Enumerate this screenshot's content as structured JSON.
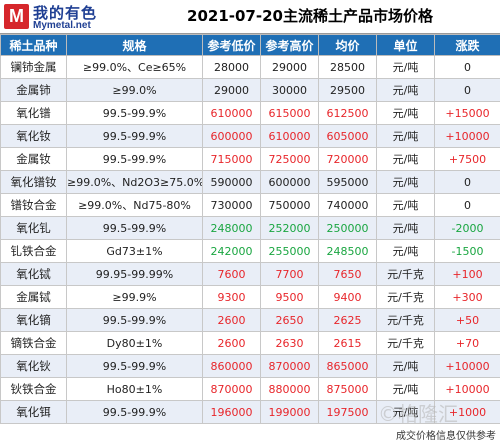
{
  "brand": {
    "logo_cn": "我的有色",
    "logo_en": "Mymetal.net",
    "mark": "M",
    "color": "#1f3f93",
    "mark_color": "#d6262b"
  },
  "title": "2021-07-20主流稀土产品市场价格",
  "columns": [
    "稀土品种",
    "规格",
    "参考低价",
    "参考高价",
    "均价",
    "单位",
    "涨跌"
  ],
  "rows": [
    {
      "name": "镧铈金属",
      "spec": "≥99.0%、Ce≥65%",
      "low": "28000",
      "high": "29000",
      "avg": "28500",
      "unit": "元/吨",
      "change": "0",
      "trend": "flat"
    },
    {
      "name": "金属铈",
      "spec": "≥99.0%",
      "low": "29000",
      "high": "30000",
      "avg": "29500",
      "unit": "元/吨",
      "change": "0",
      "trend": "flat"
    },
    {
      "name": "氧化镨",
      "spec": "99.5-99.9%",
      "low": "610000",
      "high": "615000",
      "avg": "612500",
      "unit": "元/吨",
      "change": "+15000",
      "trend": "up"
    },
    {
      "name": "氧化钕",
      "spec": "99.5-99.9%",
      "low": "600000",
      "high": "610000",
      "avg": "605000",
      "unit": "元/吨",
      "change": "+10000",
      "trend": "up"
    },
    {
      "name": "金属钕",
      "spec": "99.5-99.9%",
      "low": "715000",
      "high": "725000",
      "avg": "720000",
      "unit": "元/吨",
      "change": "+7500",
      "trend": "up"
    },
    {
      "name": "氧化镨钕",
      "spec": "≥99.0%、Nd2O3≥75.0%",
      "low": "590000",
      "high": "600000",
      "avg": "595000",
      "unit": "元/吨",
      "change": "0",
      "trend": "flat"
    },
    {
      "name": "镨钕合金",
      "spec": "≥99.0%、Nd75-80%",
      "low": "730000",
      "high": "750000",
      "avg": "740000",
      "unit": "元/吨",
      "change": "0",
      "trend": "flat"
    },
    {
      "name": "氧化钆",
      "spec": "99.5-99.9%",
      "low": "248000",
      "high": "252000",
      "avg": "250000",
      "unit": "元/吨",
      "change": "-2000",
      "trend": "down"
    },
    {
      "name": "钆铁合金",
      "spec": "Gd73±1%",
      "low": "242000",
      "high": "255000",
      "avg": "248500",
      "unit": "元/吨",
      "change": "-1500",
      "trend": "down"
    },
    {
      "name": "氧化铽",
      "spec": "99.95-99.99%",
      "low": "7600",
      "high": "7700",
      "avg": "7650",
      "unit": "元/千克",
      "change": "+100",
      "trend": "up"
    },
    {
      "name": "金属铽",
      "spec": "≥99.9%",
      "low": "9300",
      "high": "9500",
      "avg": "9400",
      "unit": "元/千克",
      "change": "+300",
      "trend": "up"
    },
    {
      "name": "氧化镝",
      "spec": "99.5-99.9%",
      "low": "2600",
      "high": "2650",
      "avg": "2625",
      "unit": "元/千克",
      "change": "+50",
      "trend": "up"
    },
    {
      "name": "镝铁合金",
      "spec": "Dy80±1%",
      "low": "2600",
      "high": "2630",
      "avg": "2615",
      "unit": "元/千克",
      "change": "+70",
      "trend": "up"
    },
    {
      "name": "氧化钬",
      "spec": "99.5-99.9%",
      "low": "860000",
      "high": "870000",
      "avg": "865000",
      "unit": "元/吨",
      "change": "+10000",
      "trend": "up"
    },
    {
      "name": "钬铁合金",
      "spec": "Ho80±1%",
      "low": "870000",
      "high": "880000",
      "avg": "875000",
      "unit": "元/吨",
      "change": "+10000",
      "trend": "up"
    },
    {
      "name": "氧化铒",
      "spec": "99.5-99.9%",
      "low": "196000",
      "high": "199000",
      "avg": "197500",
      "unit": "元/吨",
      "change": "+1000",
      "trend": "up"
    }
  ],
  "footer": "成交价格信息仅供参考",
  "watermark": "©格隆汇",
  "colors": {
    "header": "#1f6fb5",
    "up": "#e8262b",
    "down": "#1aa641",
    "alt_row": "#e9eef7"
  }
}
